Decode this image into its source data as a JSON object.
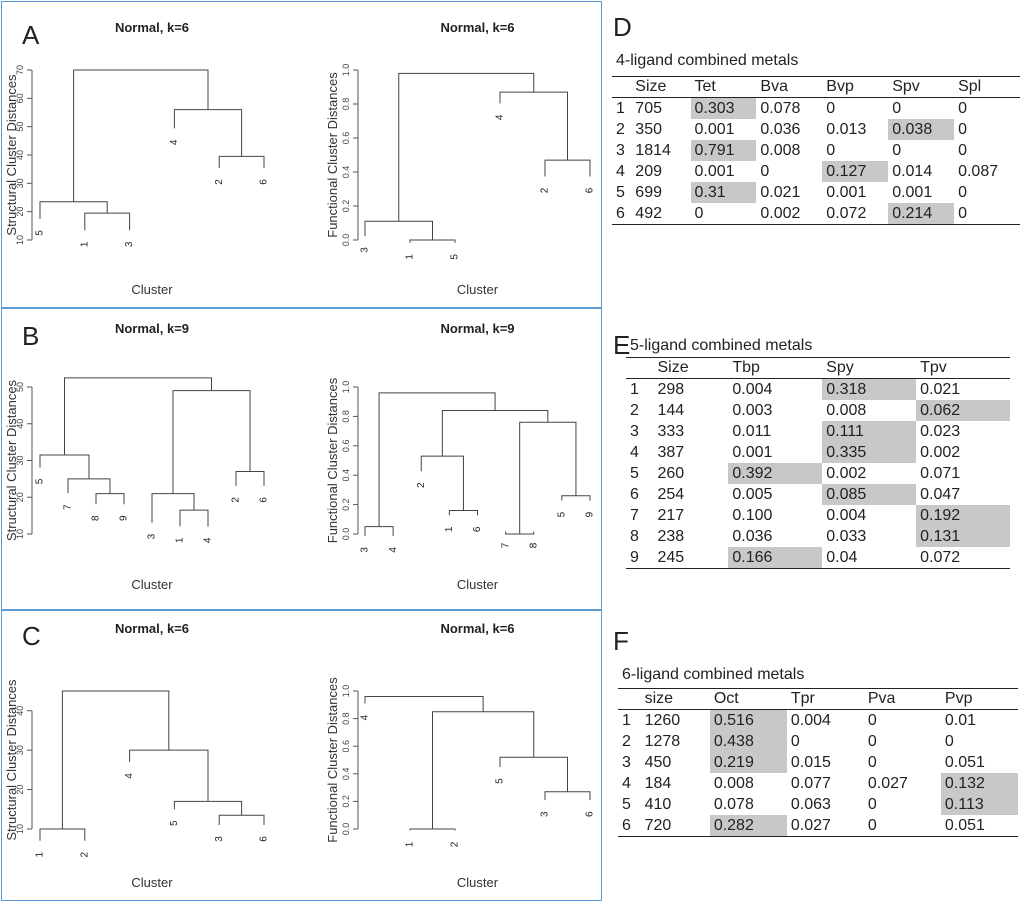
{
  "panels": {
    "A": {
      "label": "A",
      "left": {
        "title": "Normal, k=6",
        "ylabel": "Structural Cluster Distances",
        "xlabel": "Cluster",
        "ticks": [
          "10",
          "20",
          "30",
          "40",
          "50",
          "60",
          "70"
        ]
      },
      "right": {
        "title": "Normal, k=6",
        "ylabel": "Functional Cluster Distances",
        "xlabel": "Cluster",
        "ticks": [
          "0.0",
          "0.2",
          "0.4",
          "0.6",
          "0.8",
          "1.0"
        ]
      }
    },
    "B": {
      "label": "B",
      "left": {
        "title": "Normal, k=9",
        "ylabel": "Structural Cluster Distances",
        "xlabel": "Cluster",
        "ticks": [
          "10",
          "20",
          "30",
          "40",
          "50"
        ]
      },
      "right": {
        "title": "Normal, k=9",
        "ylabel": "Functional Cluster Distances",
        "xlabel": "Cluster",
        "ticks": [
          "0.0",
          "0.2",
          "0.4",
          "0.6",
          "0.8",
          "1.0"
        ]
      }
    },
    "C": {
      "label": "C",
      "left": {
        "title": "Normal, k=6",
        "ylabel": "Structural Cluster Distances",
        "xlabel": "Cluster",
        "ticks": [
          "10",
          "20",
          "30",
          "40"
        ]
      },
      "right": {
        "title": "Normal, k=6",
        "ylabel": "Functional Cluster Distances",
        "xlabel": "Cluster",
        "ticks": [
          "0.0",
          "0.2",
          "0.4",
          "0.6",
          "0.8",
          "1.0"
        ]
      }
    }
  },
  "dendrograms": [
    {
      "id": "A-left",
      "ymin": 10,
      "ymax": 70,
      "order": [
        "5",
        "1",
        "3",
        "4",
        "2",
        "6"
      ],
      "leaves": {
        "5": 16,
        "1": 12,
        "3": 12,
        "4": 48,
        "2": 34,
        "6": 34
      },
      "merges": [
        [
          "1",
          "3",
          19.5
        ],
        [
          "5",
          "m0",
          23.5
        ],
        [
          "2",
          "6",
          39.5
        ],
        [
          "4",
          "m2",
          56
        ],
        [
          "m1",
          "m3",
          70
        ]
      ]
    },
    {
      "id": "A-right",
      "ymin": 0,
      "ymax": 1,
      "order": [
        "3",
        "1",
        "5",
        "4",
        "2",
        "6"
      ],
      "leaves": {
        "3": 0.0,
        "1": -0.04,
        "5": -0.04,
        "4": 0.78,
        "2": 0.35,
        "6": 0.35
      },
      "merges": [
        [
          "1",
          "5",
          0.0
        ],
        [
          "3",
          "m0",
          0.11
        ],
        [
          "2",
          "6",
          0.47
        ],
        [
          "4",
          "m2",
          0.87
        ],
        [
          "m1",
          "m3",
          0.98
        ]
      ]
    },
    {
      "id": "B-left",
      "ymin": 10,
      "ymax": 50,
      "order": [
        "5",
        "7",
        "8",
        "9",
        "3",
        "1",
        "4",
        "2",
        "6"
      ],
      "leaves": {
        "5": 27,
        "7": 20,
        "8": 17,
        "9": 17,
        "3": 12,
        "1": 11,
        "4": 11,
        "2": 22,
        "6": 22
      },
      "merges": [
        [
          "8",
          "9",
          21
        ],
        [
          "7",
          "m0",
          25
        ],
        [
          "5",
          "m1",
          31.5
        ],
        [
          "1",
          "4",
          16.5
        ],
        [
          "3",
          "m3",
          21
        ],
        [
          "2",
          "6",
          27
        ],
        [
          "m4",
          "m5",
          49
        ],
        [
          "m2",
          "m6",
          52.5
        ]
      ]
    },
    {
      "id": "B-right",
      "ymin": 0,
      "ymax": 1,
      "order": [
        "3",
        "4",
        "2",
        "1",
        "6",
        "7",
        "8",
        "5",
        "9"
      ],
      "leaves": {
        "3": -0.04,
        "4": -0.04,
        "2": 0.4,
        "1": 0.1,
        "6": 0.1,
        "7": -0.01,
        "8": -0.01,
        "5": 0.2,
        "9": 0.2
      },
      "merges": [
        [
          "3",
          "4",
          0.05
        ],
        [
          "1",
          "6",
          0.16
        ],
        [
          "2",
          "m1",
          0.53
        ],
        [
          "7",
          "8",
          0.0
        ],
        [
          "5",
          "9",
          0.26
        ],
        [
          "m3",
          "m4",
          0.76
        ],
        [
          "m2",
          "m5",
          0.84
        ],
        [
          "m0",
          "m6",
          0.96
        ]
      ]
    },
    {
      "id": "C-left",
      "ymin": 10,
      "ymax": 45,
      "order": [
        "1",
        "2",
        "4",
        "5",
        "3",
        "6"
      ],
      "leaves": {
        "1": 6,
        "2": 6,
        "4": 26,
        "5": 14,
        "3": 10,
        "6": 10
      },
      "merges": [
        [
          "1",
          "2",
          10
        ],
        [
          "3",
          "6",
          13.5
        ],
        [
          "5",
          "m1",
          17
        ],
        [
          "4",
          "m2",
          30
        ],
        [
          "m0",
          "m3",
          45
        ]
      ]
    },
    {
      "id": "C-right",
      "ymin": 0,
      "ymax": 1,
      "order": [
        "4",
        "1",
        "2",
        "5",
        "3",
        "6"
      ],
      "leaves": {
        "4": 0.88,
        "1": -0.04,
        "2": -0.04,
        "5": 0.42,
        "3": 0.18,
        "6": 0.18
      },
      "merges": [
        [
          "1",
          "2",
          0.0
        ],
        [
          "3",
          "6",
          0.27
        ],
        [
          "5",
          "m1",
          0.52
        ],
        [
          "m0",
          "m2",
          0.85
        ],
        [
          "4",
          "m3",
          0.96
        ]
      ]
    }
  ],
  "tables": {
    "D": {
      "label": "D",
      "title": "4-ligand combined metals",
      "headers": [
        "",
        "Size",
        "Tet",
        "Bva",
        "Bvp",
        "Spv",
        "Spl"
      ],
      "rows": [
        [
          "1",
          "705",
          "0.303",
          "0.078",
          "0",
          "0",
          "0"
        ],
        [
          "2",
          "350",
          "0.001",
          "0.036",
          "0.013",
          "0.038",
          "0"
        ],
        [
          "3",
          "1814",
          "0.791",
          "0.008",
          "0",
          "0",
          "0"
        ],
        [
          "4",
          "209",
          "0.001",
          "0",
          "0.127",
          "0.014",
          "0.087"
        ],
        [
          "5",
          "699",
          "0.31",
          "0.021",
          "0.001",
          "0.001",
          "0"
        ],
        [
          "6",
          "492",
          "0",
          "0.002",
          "0.072",
          "0.214",
          "0"
        ]
      ],
      "highlight": [
        [
          0,
          2
        ],
        [
          1,
          5
        ],
        [
          2,
          2
        ],
        [
          3,
          4
        ],
        [
          4,
          2
        ],
        [
          5,
          5
        ]
      ]
    },
    "E": {
      "label": "E",
      "title": "5-ligand combined metals",
      "headers": [
        "",
        "Size",
        "Tbp",
        "Spy",
        "Tpv"
      ],
      "rows": [
        [
          "1",
          "298",
          "0.004",
          "0.318",
          "0.021"
        ],
        [
          "2",
          "144",
          "0.003",
          "0.008",
          "0.062"
        ],
        [
          "3",
          "333",
          "0.011",
          "0.111",
          "0.023"
        ],
        [
          "4",
          "387",
          "0.001",
          "0.335",
          "0.002"
        ],
        [
          "5",
          "260",
          "0.392",
          "0.002",
          "0.071"
        ],
        [
          "6",
          "254",
          "0.005",
          "0.085",
          "0.047"
        ],
        [
          "7",
          "217",
          "0.100",
          "0.004",
          "0.192"
        ],
        [
          "8",
          "238",
          "0.036",
          "0.033",
          "0.131"
        ],
        [
          "9",
          "245",
          "0.166",
          "0.04",
          "0.072"
        ]
      ],
      "highlight": [
        [
          0,
          3
        ],
        [
          1,
          4
        ],
        [
          2,
          3
        ],
        [
          3,
          3
        ],
        [
          4,
          2
        ],
        [
          5,
          3
        ],
        [
          6,
          4
        ],
        [
          7,
          4
        ],
        [
          8,
          2
        ]
      ]
    },
    "F": {
      "label": "F",
      "title": "6-ligand combined metals",
      "headers": [
        "",
        "size",
        "Oct",
        "Tpr",
        "Pva",
        "Pvp"
      ],
      "rows": [
        [
          "1",
          "1260",
          "0.516",
          "0.004",
          "0",
          "0.01"
        ],
        [
          "2",
          "1278",
          "0.438",
          "0",
          "0",
          "0"
        ],
        [
          "3",
          "450",
          "0.219",
          "0.015",
          "0",
          "0.051"
        ],
        [
          "4",
          "184",
          "0.008",
          "0.077",
          "0.027",
          "0.132"
        ],
        [
          "5",
          "410",
          "0.078",
          "0.063",
          "0",
          "0.113"
        ],
        [
          "6",
          "720",
          "0.282",
          "0.027",
          "0",
          "0.051"
        ]
      ],
      "highlight": [
        [
          0,
          2
        ],
        [
          1,
          2
        ],
        [
          2,
          2
        ],
        [
          3,
          5
        ],
        [
          4,
          5
        ],
        [
          5,
          2
        ]
      ]
    }
  }
}
